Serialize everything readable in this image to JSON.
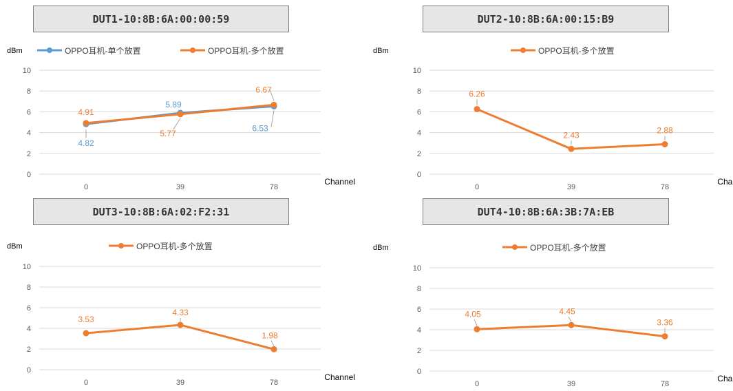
{
  "colors": {
    "blue": "#5b9bd5",
    "orange": "#ed7d31",
    "grid": "#d9d9d9",
    "axis_text": "#595959"
  },
  "chart_data": [
    {
      "type": "line",
      "title": "DUT1-10:8B:6A:00:00:59",
      "ylabel": "dBm",
      "xlabel": "Channel",
      "categories": [
        "0",
        "39",
        "78"
      ],
      "y_ticks": [
        0,
        2,
        4,
        6,
        8,
        10
      ],
      "ylim": [
        0,
        10
      ],
      "grid": "horizontal",
      "legend_position": "top",
      "series": [
        {
          "name": "OPPO耳机-单个放置",
          "color": "#5b9bd5",
          "values": [
            4.82,
            5.89,
            6.53
          ]
        },
        {
          "name": "OPPO耳机-多个放置",
          "color": "#ed7d31",
          "values": [
            4.91,
            5.77,
            6.67
          ]
        }
      ]
    },
    {
      "type": "line",
      "title": "DUT2-10:8B:6A:00:15:B9",
      "ylabel": "dBm",
      "xlabel": "Channel",
      "categories": [
        "0",
        "39",
        "78"
      ],
      "y_ticks": [
        0,
        2,
        4,
        6,
        8,
        10
      ],
      "ylim": [
        0,
        10
      ],
      "grid": "horizontal",
      "legend_position": "top",
      "series": [
        {
          "name": "OPPO耳机-多个放置",
          "color": "#ed7d31",
          "values": [
            6.26,
            2.43,
            2.88
          ]
        }
      ]
    },
    {
      "type": "line",
      "title": "DUT3-10:8B:6A:02:F2:31",
      "ylabel": "dBm",
      "xlabel": "Channel",
      "categories": [
        "0",
        "39",
        "78"
      ],
      "y_ticks": [
        0,
        2,
        4,
        6,
        8,
        10
      ],
      "ylim": [
        0,
        10
      ],
      "grid": "horizontal",
      "legend_position": "top",
      "series": [
        {
          "name": "OPPO耳机-多个放置",
          "color": "#ed7d31",
          "values": [
            3.53,
            4.33,
            1.98
          ]
        }
      ]
    },
    {
      "type": "line",
      "title": "DUT4-10:8B:6A:3B:7A:EB",
      "ylabel": "dBm",
      "xlabel": "Channel",
      "categories": [
        "0",
        "39",
        "78"
      ],
      "y_ticks": [
        0,
        2,
        4,
        6,
        8,
        10
      ],
      "ylim": [
        0,
        10
      ],
      "grid": "horizontal",
      "legend_position": "top",
      "series": [
        {
          "name": "OPPO耳机-多个放置",
          "color": "#ed7d31",
          "values": [
            4.05,
            4.45,
            3.36
          ]
        }
      ]
    }
  ]
}
